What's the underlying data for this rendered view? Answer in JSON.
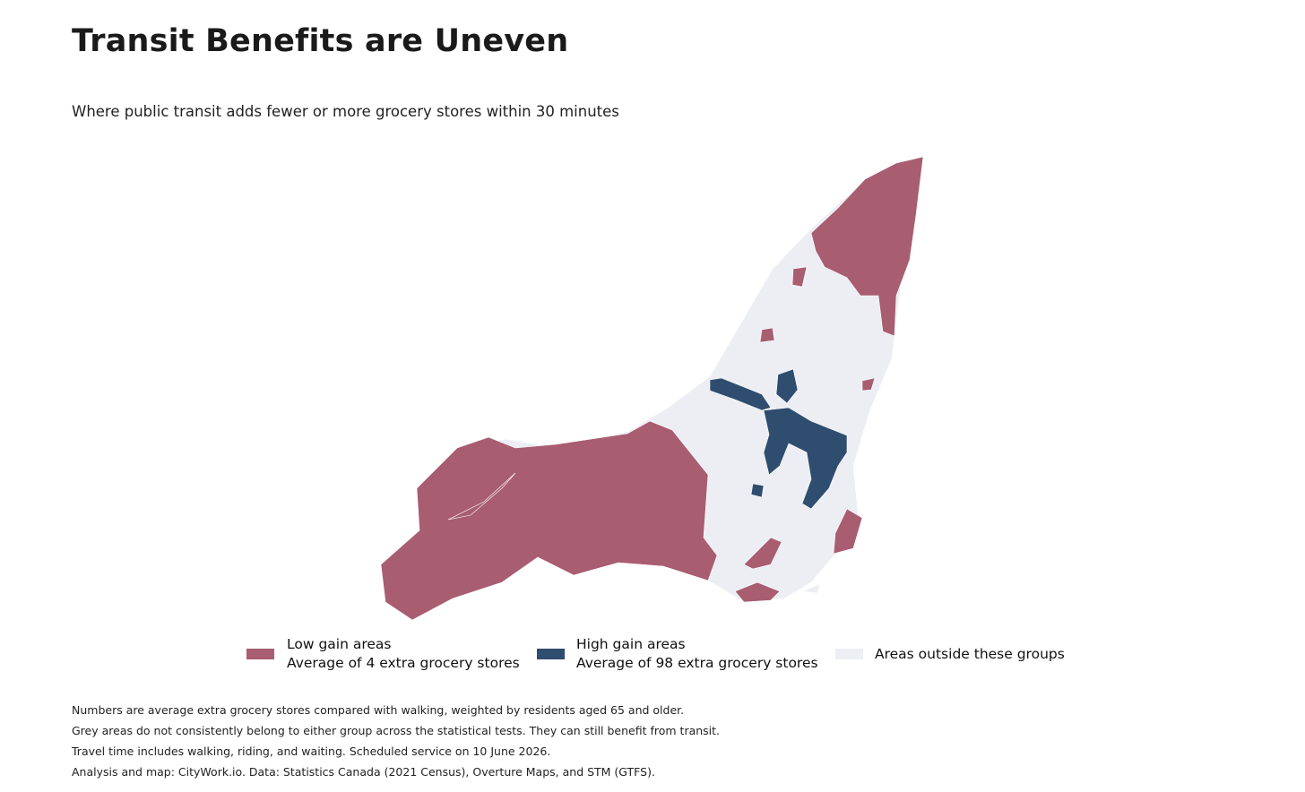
{
  "header": {
    "title": "Transit Benefits are Uneven",
    "subtitle": "Where public transit adds fewer or more grocery stores within 30 minutes"
  },
  "legend": [
    {
      "label": "Low gain areas",
      "detail": "Average of 4 extra grocery stores",
      "color": "#a85d70"
    },
    {
      "label": "High gain areas",
      "detail": "Average of 98 extra grocery stores",
      "color": "#2f4d6e"
    },
    {
      "label": "Areas outside these groups",
      "color": "#eceef4"
    }
  ],
  "notes": [
    "Numbers are average extra grocery stores compared with walking, weighted by residents aged 65 and older.",
    "Grey areas do not consistently belong to either group across the statistical tests. They can still benefit from transit.",
    "Travel time includes walking, riding, and waiting. Scheduled service on 10 June 2026.",
    "Analysis and map: CityWork.io. Data: Statistics Canada (2021 Census), Overture Maps, and STM (GTFS)."
  ]
}
